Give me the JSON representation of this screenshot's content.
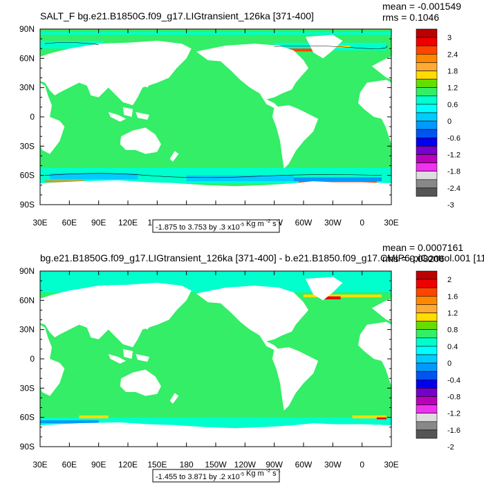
{
  "panels": [
    {
      "title": "SALT_F bg.e21.B1850G.f09_g17.LIGtransient_126ka [371-400]",
      "mean_text": "mean = -0.001549",
      "rms_text": "rms = 0.1046",
      "range_note": "-1.875 to 3.753 by .3",
      "range_units": "Kg m",
      "colorbar_labels": [
        "3",
        "2.4",
        "1.8",
        "1.2",
        "0.6",
        "0",
        "-0.6",
        "-1.2",
        "-1.8",
        "-2.4",
        "-3"
      ]
    },
    {
      "title": "bg.e21.B1850G.f09_g17.LIGtransient_126ka [371-400] - b.e21.B1850.f09_g17.CMIP6-piControl.001 [11",
      "mean_text": "mean = 0.0007161",
      "rms_text": "rms = 0.08206",
      "range_note": "-1.455 to 3.871 by .2",
      "range_units": "Kg m",
      "colorbar_labels": [
        "2",
        "1.6",
        "1.2",
        "0.8",
        "0.4",
        "0",
        "-0.4",
        "-0.8",
        "-1.2",
        "-1.6",
        "-2"
      ]
    }
  ],
  "axis": {
    "lon_ticks": [
      "30E",
      "60E",
      "90E",
      "120E",
      "150E",
      "180",
      "150W",
      "120W",
      "90W",
      "60W",
      "30W",
      "0",
      "30E"
    ],
    "lat_ticks": [
      "90N",
      "60N",
      "30N",
      "0",
      "30S",
      "60S",
      "90S"
    ]
  },
  "colors": {
    "ocean_zero": "#33ee66",
    "land": "#ffffff",
    "palette": [
      "#bb0000",
      "#ee0000",
      "#ff4400",
      "#ff8800",
      "#ffaa33",
      "#ffdd00",
      "#66dd00",
      "#33ee66",
      "#00ffcc",
      "#00ffff",
      "#00ccff",
      "#0099ff",
      "#0055ee",
      "#0000ee",
      "#7700cc",
      "#bb00bb",
      "#ee33ee",
      "#dddddd",
      "#888888",
      "#555555"
    ]
  },
  "chart_data": [
    {
      "type": "heatmap",
      "title": "SALT_F bg.e21.B1850G.f09_g17.LIGtransient_126ka [371-400]",
      "xlabel": "",
      "ylabel": "",
      "x_range_deg": [
        30,
        390
      ],
      "y_range_deg": [
        -90,
        90
      ],
      "color_levels": [
        3,
        2.4,
        1.8,
        1.2,
        0.6,
        0,
        -0.6,
        -1.2,
        -1.8,
        -2.4,
        -3
      ],
      "mean": -0.001549,
      "rms": 0.1046,
      "data_min": -1.875,
      "data_max": 3.753,
      "contour_interval": 0.3
    },
    {
      "type": "heatmap",
      "title": "bg.e21.B1850G.f09_g17.LIGtransient_126ka [371-400] - b.e21.B1850.f09_g17.CMIP6-piControl.001",
      "xlabel": "",
      "ylabel": "",
      "x_range_deg": [
        30,
        390
      ],
      "y_range_deg": [
        -90,
        90
      ],
      "color_levels": [
        2,
        1.6,
        1.2,
        0.8,
        0.4,
        0,
        -0.4,
        -0.8,
        -1.2,
        -1.6,
        -2
      ],
      "mean": 0.0007161,
      "rms": 0.08206,
      "data_min": -1.455,
      "data_max": 3.871,
      "contour_interval": 0.2
    }
  ]
}
